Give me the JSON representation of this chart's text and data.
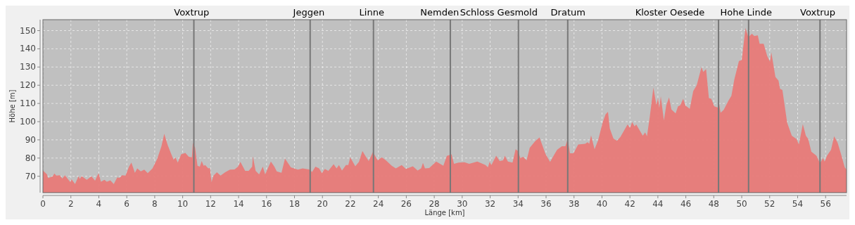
{
  "chart_data": {
    "type": "area",
    "xlabel": "Länge [km]",
    "ylabel": "Höhe [m]",
    "xlim": [
      0,
      57.5
    ],
    "ylim": [
      61,
      156
    ],
    "xticks": [
      0,
      2,
      4,
      6,
      8,
      10,
      12,
      14,
      16,
      18,
      20,
      22,
      24,
      26,
      28,
      30,
      32,
      34,
      36,
      38,
      40,
      42,
      44,
      46,
      48,
      50,
      52,
      54,
      56
    ],
    "yticks": [
      70,
      80,
      90,
      100,
      110,
      120,
      130,
      140,
      150
    ],
    "grid": true,
    "series": [
      {
        "color": "#e87a78",
        "x": [
          0,
          0.29,
          0.37,
          0.54,
          0.7,
          0.82,
          0.96,
          1.21,
          1.38,
          1.58,
          1.8,
          1.96,
          2.05,
          2.3,
          2.55,
          2.64,
          2.77,
          3.14,
          3.47,
          3.73,
          3.98,
          4.15,
          4.4,
          4.57,
          4.82,
          5.07,
          5.32,
          5.49,
          5.66,
          5.91,
          6.16,
          6.33,
          6.58,
          6.75,
          7.0,
          7.25,
          7.5,
          7.84,
          8.17,
          8.48,
          8.68,
          8.93,
          9.18,
          9.35,
          9.48,
          9.65,
          9.89,
          10.19,
          10.44,
          10.66,
          10.73,
          10.89,
          11.06,
          11.23,
          11.36,
          11.5,
          11.61,
          11.83,
          11.95,
          12.07,
          12.2,
          12.45,
          12.71,
          13.04,
          13.38,
          13.71,
          13.96,
          14.13,
          14.47,
          14.72,
          14.97,
          15.02,
          15.22,
          15.47,
          15.73,
          15.9,
          16.31,
          16.56,
          16.73,
          17.07,
          17.32,
          17.74,
          18.24,
          18.58,
          19.12,
          19.25,
          19.5,
          19.76,
          19.96,
          20.17,
          20.42,
          20.8,
          21.01,
          21.18,
          21.4,
          21.68,
          21.85,
          21.99,
          22.35,
          22.61,
          22.86,
          23.11,
          23.31,
          23.61,
          23.95,
          24.25,
          24.54,
          24.96,
          25.25,
          25.67,
          25.97,
          26.47,
          26.81,
          27.06,
          27.19,
          27.34,
          27.64,
          28.14,
          28.65,
          28.9,
          29.24,
          29.41,
          29.74,
          30.16,
          30.5,
          31.08,
          31.67,
          31.84,
          31.96,
          32.09,
          32.43,
          32.68,
          32.93,
          33.05,
          33.27,
          33.6,
          33.82,
          33.99,
          34.16,
          34.36,
          34.61,
          34.83,
          35.2,
          35.53,
          35.96,
          36.29,
          36.54,
          36.79,
          37.13,
          37.38,
          37.55,
          37.71,
          37.96,
          38.3,
          38.8,
          38.97,
          39.09,
          39.22,
          39.47,
          39.72,
          40.06,
          40.26,
          40.43,
          40.56,
          40.82,
          41.07,
          41.32,
          41.83,
          42.0,
          42.16,
          42.33,
          42.45,
          42.92,
          43.09,
          43.22,
          43.42,
          43.68,
          43.89,
          44.01,
          44.1,
          44.21,
          44.43,
          44.6,
          44.8,
          44.97,
          45.27,
          45.44,
          45.6,
          45.81,
          45.98,
          46.28,
          46.53,
          46.78,
          47.12,
          47.25,
          47.45,
          47.65,
          47.82,
          48.04,
          48.29,
          48.34,
          48.49,
          48.71,
          49.04,
          49.26,
          49.47,
          49.8,
          50.0,
          50.27,
          50.47,
          50.73,
          50.9,
          51.15,
          51.28,
          51.57,
          51.82,
          52.02,
          52.12,
          52.41,
          52.63,
          52.74,
          52.91,
          53.25,
          53.58,
          53.92,
          54.09,
          54.37,
          54.59,
          54.76,
          54.98,
          55.35,
          55.6,
          55.82,
          55.93,
          56.1,
          56.39,
          56.61,
          56.86,
          57.11,
          57.37,
          57.5
        ],
        "values": [
          73.2,
          71,
          69,
          69.5,
          70,
          71.5,
          70.4,
          70.6,
          68.7,
          70.6,
          68.3,
          66.8,
          68.3,
          65.7,
          70.1,
          68.5,
          70.1,
          68,
          70,
          67.6,
          71.7,
          67,
          68,
          67,
          67.8,
          65.7,
          69.4,
          69.1,
          70.6,
          70.4,
          75.3,
          77.5,
          71.9,
          74.3,
          72.7,
          73.6,
          71.7,
          74.3,
          79.4,
          86.5,
          93.3,
          87.1,
          82.2,
          79.1,
          80.4,
          77.5,
          82,
          82.8,
          80.7,
          80.4,
          88.4,
          85.6,
          75.8,
          75.3,
          78.4,
          75.8,
          76.2,
          74.3,
          74.5,
          66.8,
          70.4,
          72.2,
          70.4,
          72.2,
          73.6,
          73.7,
          75.3,
          77.9,
          73,
          73,
          75.3,
          81,
          73,
          71,
          75.3,
          71,
          78.1,
          75.3,
          72.7,
          71.9,
          79.7,
          74.9,
          73.6,
          74.3,
          73.6,
          72.3,
          75.3,
          74.3,
          71.7,
          74,
          73,
          76.6,
          74.3,
          76.2,
          73.2,
          76.2,
          76.2,
          80.4,
          75.5,
          77.9,
          83.9,
          80.7,
          78.4,
          83.3,
          78.8,
          80.4,
          78.8,
          75.8,
          74.3,
          76.2,
          74,
          75.5,
          73.2,
          74.3,
          77.3,
          74.3,
          74.5,
          78.1,
          75.8,
          81.2,
          82,
          76.8,
          77.5,
          77.7,
          76.8,
          78.1,
          76.2,
          74.9,
          77.9,
          76.2,
          81.3,
          78.4,
          78.8,
          81.3,
          78.1,
          77.5,
          84.8,
          83.9,
          80,
          80.7,
          78.8,
          85.6,
          89.1,
          91.3,
          82.2,
          77.9,
          81.3,
          84.6,
          86.5,
          86.5,
          90.4,
          82.6,
          82.6,
          87.5,
          87.8,
          88.7,
          87.8,
          92.5,
          84.8,
          89.7,
          99.8,
          104.1,
          105.4,
          96.2,
          90.7,
          89.5,
          91.6,
          98.5,
          96.5,
          99.8,
          97.4,
          98.5,
          92.3,
          94.1,
          92,
          102.6,
          118.7,
          109.3,
          112.9,
          107.5,
          113.9,
          100.7,
          109,
          113.3,
          106.7,
          104.5,
          108.4,
          109,
          112.6,
          108.8,
          107.1,
          116.8,
          120,
          129.9,
          127.3,
          128.9,
          112.9,
          112.6,
          108.4,
          107.7,
          111.4,
          104.9,
          106.5,
          111.4,
          114.2,
          123.2,
          133.3,
          133.8,
          151.5,
          146.4,
          148.3,
          147,
          147.4,
          142.8,
          142.8,
          136.1,
          132.9,
          138,
          124.5,
          122.6,
          118.1,
          117.4,
          99.4,
          92.3,
          90.4,
          87.5,
          98.7,
          92.3,
          90.4,
          83.5,
          81.3,
          77.1,
          80,
          78.1,
          81.3,
          84.6,
          92,
          88.4,
          82,
          74.9,
          73.6
        ]
      }
    ],
    "ref_lines": [
      {
        "axis": "x",
        "value": 10.8,
        "label": "Voxtrup",
        "color": "#777777"
      },
      {
        "axis": "x",
        "value": 19.12,
        "label": "Jeggen",
        "color": "#777777"
      },
      {
        "axis": "x",
        "value": 23.65,
        "label": "Linne",
        "color": "#777777"
      },
      {
        "axis": "x",
        "value": 29.15,
        "label": "Nemden",
        "color": "#777777"
      },
      {
        "axis": "x",
        "value": 34.02,
        "label": "Schloss Gesmold",
        "color": "#777777"
      },
      {
        "axis": "x",
        "value": 37.55,
        "label": "Dratum",
        "color": "#777777"
      },
      {
        "axis": "x",
        "value": 48.34,
        "label": "Kloster Oesede",
        "color": "#777777"
      },
      {
        "axis": "x",
        "value": 50.49,
        "label": "Hohe Linde",
        "color": "#777777"
      },
      {
        "axis": "x",
        "value": 55.6,
        "label": "Voxtrup",
        "color": "#777777"
      }
    ]
  }
}
